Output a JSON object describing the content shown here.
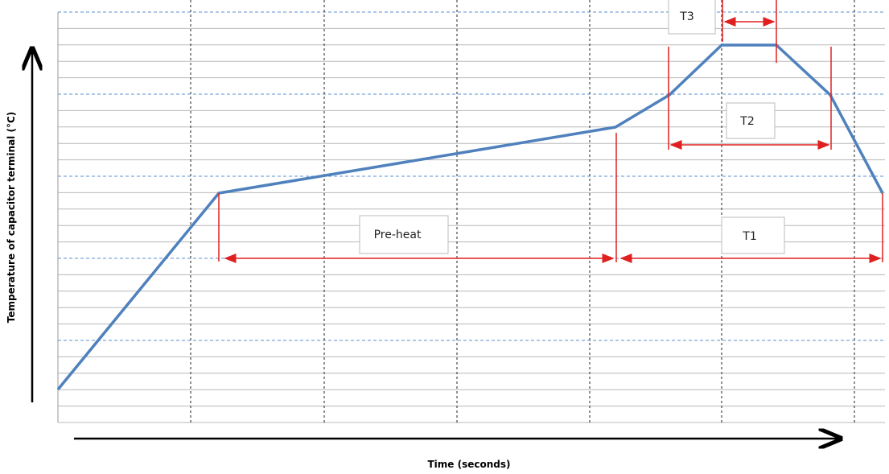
{
  "axes": {
    "y_label": "Temperature of capacitor terminal (°C)",
    "x_label": "Time (seconds)"
  },
  "annotations": {
    "preheat": "Pre-heat",
    "t1": "T1",
    "t2": "T2",
    "t3": "T3"
  }
}
